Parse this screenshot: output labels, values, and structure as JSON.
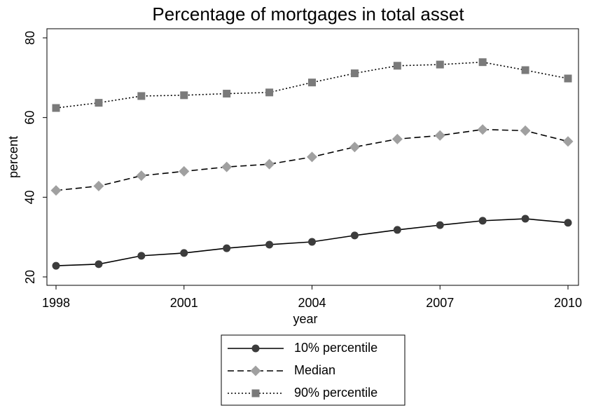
{
  "chart_data": {
    "type": "line",
    "title": "Percentage of mortgages in total asset",
    "x_label": "year",
    "y_label": "percent",
    "x": [
      1998,
      1999,
      2000,
      2001,
      2002,
      2003,
      2004,
      2005,
      2006,
      2007,
      2008,
      2009,
      2010
    ],
    "series": [
      {
        "name": "10% percentile",
        "color": "#3c3c3c",
        "marker": "circle",
        "dash": "solid",
        "values": [
          22.8,
          23.2,
          25.3,
          26.0,
          27.2,
          28.1,
          28.8,
          30.4,
          31.8,
          33.0,
          34.1,
          34.6,
          33.6
        ]
      },
      {
        "name": "Median",
        "color": "#a0a0a0",
        "marker": "diamond",
        "dash": "dashed",
        "values": [
          41.7,
          42.8,
          45.4,
          46.5,
          47.6,
          48.3,
          50.1,
          52.6,
          54.6,
          55.5,
          57.0,
          56.7,
          54.0
        ]
      },
      {
        "name": "90% percentile",
        "color": "#7a7a7a",
        "marker": "square",
        "dash": "dotted",
        "values": [
          62.4,
          63.7,
          65.4,
          65.6,
          66.0,
          66.3,
          68.8,
          71.1,
          73.0,
          73.3,
          73.9,
          71.9,
          69.8
        ]
      }
    ],
    "xlim": [
      1998,
      2010
    ],
    "xticks": [
      1998,
      2001,
      2004,
      2007,
      2010
    ],
    "ylim": [
      20,
      80
    ],
    "yticks": [
      20,
      40,
      60,
      80
    ],
    "grid": false
  }
}
